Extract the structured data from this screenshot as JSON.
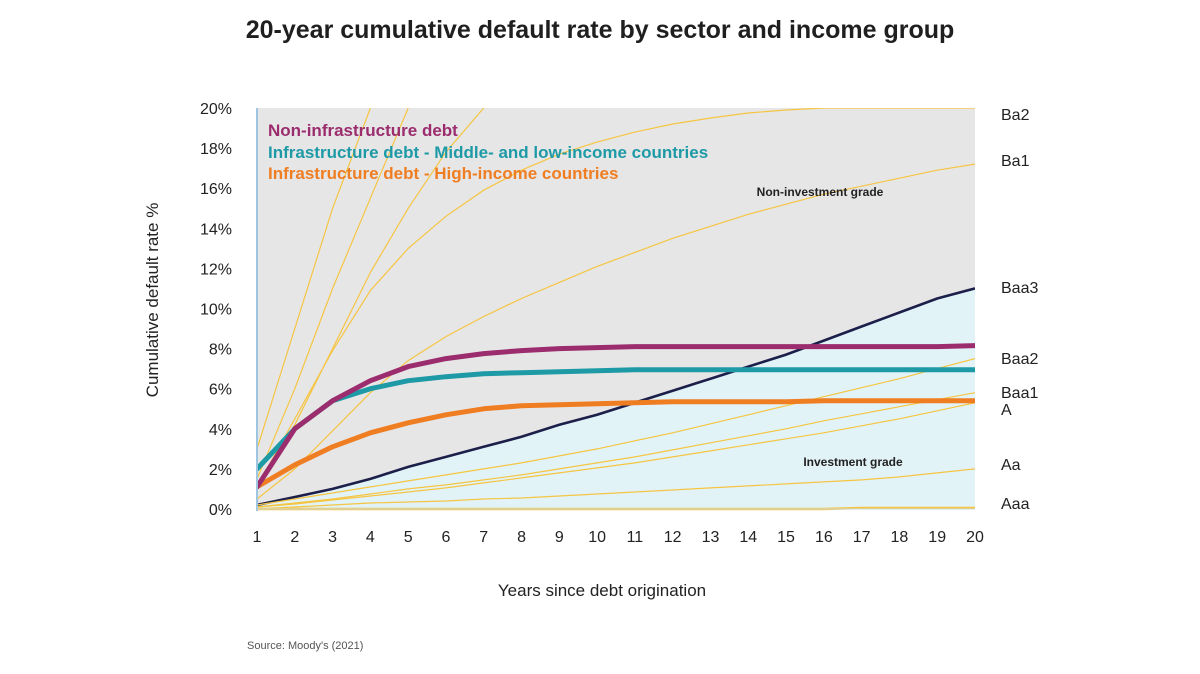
{
  "chart_data": {
    "type": "line",
    "title": "20-year cumulative default rate by sector and income group",
    "xlabel": "Years since debt origination",
    "ylabel": "Cumulative default rate %",
    "x": [
      1,
      2,
      3,
      4,
      5,
      6,
      7,
      8,
      9,
      10,
      11,
      12,
      13,
      14,
      15,
      16,
      17,
      18,
      19,
      20
    ],
    "x_ticks": [
      "1",
      "2",
      "3",
      "4",
      "5",
      "6",
      "7",
      "8",
      "9",
      "10",
      "11",
      "12",
      "13",
      "14",
      "15",
      "16",
      "17",
      "18",
      "19",
      "20"
    ],
    "ylim": [
      0,
      20
    ],
    "y_ticks": [
      "0%",
      "2%",
      "4%",
      "6%",
      "8%",
      "10%",
      "12%",
      "14%",
      "16%",
      "18%",
      "20%"
    ],
    "source": "Source: Moody's (2021)",
    "regions": {
      "non_investment": "Non-investment grade",
      "investment": "Investment grade"
    },
    "series": [
      {
        "name": "Non-infrastructure debt",
        "color": "#9b2c6e",
        "role": "highlight",
        "values": [
          1.1,
          4.0,
          5.4,
          6.4,
          7.1,
          7.5,
          7.75,
          7.9,
          8.0,
          8.05,
          8.1,
          8.1,
          8.1,
          8.1,
          8.1,
          8.1,
          8.1,
          8.1,
          8.1,
          8.15
        ]
      },
      {
        "name": "Infrastructure debt - Middle- and low-income countries",
        "color": "#1e9aa7",
        "role": "highlight",
        "values": [
          2.0,
          4.0,
          5.4,
          6.0,
          6.4,
          6.6,
          6.75,
          6.8,
          6.85,
          6.9,
          6.95,
          6.95,
          6.95,
          6.95,
          6.95,
          6.95,
          6.95,
          6.95,
          6.95,
          6.95
        ]
      },
      {
        "name": "Infrastructure debt - High-income countries",
        "color": "#ef7d22",
        "role": "highlight",
        "values": [
          1.1,
          2.2,
          3.1,
          3.8,
          4.3,
          4.7,
          5.0,
          5.15,
          5.2,
          5.25,
          5.3,
          5.35,
          5.35,
          5.35,
          5.35,
          5.4,
          5.4,
          5.4,
          5.4,
          5.4
        ]
      },
      {
        "name": "Ba2",
        "color": "#f5c542",
        "role": "rating",
        "values": [
          1.1,
          4.5,
          7.9,
          10.9,
          13.0,
          14.6,
          15.9,
          16.9,
          17.7,
          18.3,
          18.8,
          19.2,
          19.5,
          19.75,
          19.9,
          20.0,
          20.0,
          20.0,
          20.0,
          20.0
        ]
      },
      {
        "name": "Ba1",
        "color": "#f5c542",
        "role": "rating",
        "values": [
          0.5,
          2.0,
          3.9,
          5.8,
          7.4,
          8.6,
          9.6,
          10.5,
          11.3,
          12.1,
          12.8,
          13.5,
          14.1,
          14.7,
          15.2,
          15.7,
          16.1,
          16.5,
          16.9,
          17.2
        ]
      },
      {
        "name": "Baa3",
        "color": "#1c1f4a",
        "role": "rating",
        "values": [
          0.2,
          0.6,
          1.0,
          1.5,
          2.1,
          2.6,
          3.1,
          3.6,
          4.2,
          4.7,
          5.3,
          5.9,
          6.5,
          7.1,
          7.7,
          8.4,
          9.1,
          9.8,
          10.5,
          11.0
        ]
      },
      {
        "name": "Baa2",
        "color": "#f5c542",
        "role": "rating",
        "values": [
          0.2,
          0.5,
          0.8,
          1.1,
          1.4,
          1.7,
          2.0,
          2.3,
          2.65,
          3.0,
          3.4,
          3.8,
          4.25,
          4.7,
          5.15,
          5.6,
          6.05,
          6.5,
          7.0,
          7.5
        ]
      },
      {
        "name": "Baa1",
        "color": "#f5c542",
        "role": "rating",
        "values": [
          0.1,
          0.3,
          0.5,
          0.75,
          1.0,
          1.2,
          1.45,
          1.7,
          2.0,
          2.3,
          2.6,
          2.95,
          3.3,
          3.65,
          4.0,
          4.4,
          4.75,
          5.1,
          5.45,
          5.8
        ]
      },
      {
        "name": "A",
        "color": "#f5c542",
        "role": "rating",
        "values": [
          0.1,
          0.25,
          0.45,
          0.65,
          0.85,
          1.05,
          1.3,
          1.55,
          1.8,
          2.05,
          2.3,
          2.6,
          2.9,
          3.2,
          3.5,
          3.8,
          4.15,
          4.5,
          4.9,
          5.3
        ]
      },
      {
        "name": "Aa",
        "color": "#f5c542",
        "role": "rating",
        "values": [
          0.0,
          0.1,
          0.2,
          0.3,
          0.35,
          0.4,
          0.5,
          0.55,
          0.65,
          0.75,
          0.85,
          0.95,
          1.05,
          1.15,
          1.25,
          1.35,
          1.45,
          1.6,
          1.8,
          2.0
        ]
      },
      {
        "name": "Aaa",
        "color": "#f5c542",
        "role": "rating",
        "values": [
          0.0,
          0.0,
          0.0,
          0.0,
          0.0,
          0.0,
          0.0,
          0.0,
          0.0,
          0.0,
          0.0,
          0.0,
          0.0,
          0.0,
          0.0,
          0.0,
          0.05,
          0.05,
          0.05,
          0.05
        ]
      }
    ],
    "extra_rating_lines": [
      {
        "color": "#f5c542",
        "values": [
          3.0,
          9.0,
          15.0,
          20.0
        ]
      },
      {
        "color": "#f5c542",
        "values": [
          1.5,
          6.0,
          11.0,
          15.5,
          20.0
        ]
      },
      {
        "color": "#f5c542",
        "values": [
          1.0,
          4.2,
          8.0,
          11.8,
          15.0,
          17.8,
          20.0
        ]
      }
    ]
  },
  "legend": {
    "items": [
      {
        "label": "Non-infrastructure debt",
        "color": "#9b2c6e"
      },
      {
        "label": "Infrastructure debt - Middle- and low-income countries",
        "color": "#1e9aa7"
      },
      {
        "label": "Infrastructure debt - High-income countries",
        "color": "#ef7d22"
      }
    ]
  },
  "colors": {
    "non_investment_bg": "#e7e6e6",
    "investment_bg": "#e2f3f8",
    "rating_line": "#f5c542",
    "axis": "#9fc6e0"
  }
}
